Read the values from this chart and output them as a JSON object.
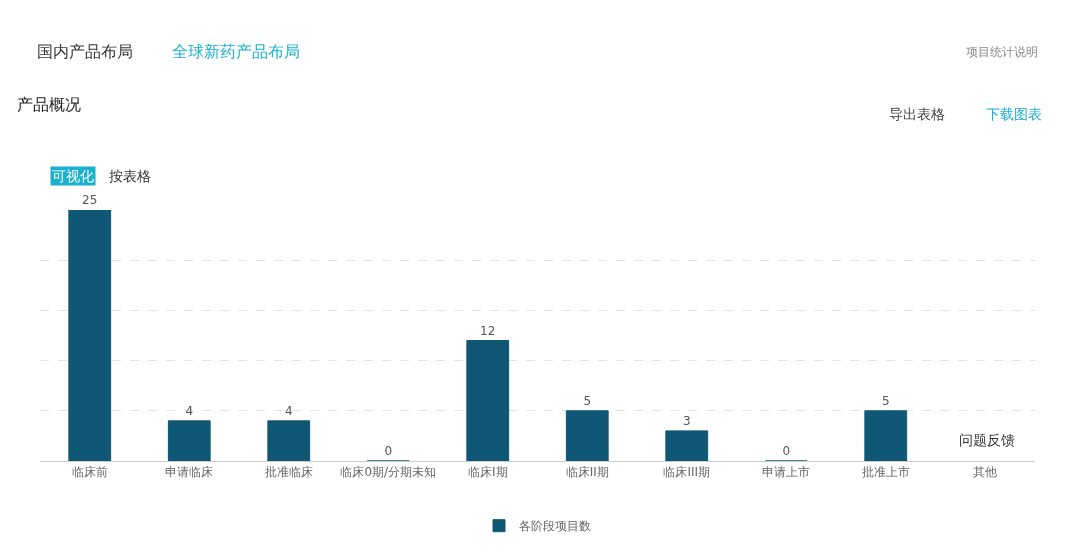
{
  "chart_data": {
    "type": "bar",
    "title": "产品概况",
    "categories": [
      "临床前",
      "申请临床",
      "批准临床",
      "临床0期/分期未知",
      "临床I期",
      "临床II期",
      "临床III期",
      "申请上市",
      "批准上市",
      "其他"
    ],
    "series": [
      {
        "name": "各阶段项目数",
        "color": "#0f5774",
        "values": [
          25,
          4,
          4,
          0,
          12,
          5,
          3,
          0,
          5,
          null
        ]
      }
    ],
    "ylim": [
      0,
      25
    ],
    "grid": "y",
    "data_labels": true,
    "legend": "bottom",
    "annotations": [
      "国内产品布局",
      "全球新药产品布局",
      "项目统计说明",
      "导出表格",
      "下载图表",
      "可视化",
      "按表格",
      "问题反馈"
    ]
  }
}
